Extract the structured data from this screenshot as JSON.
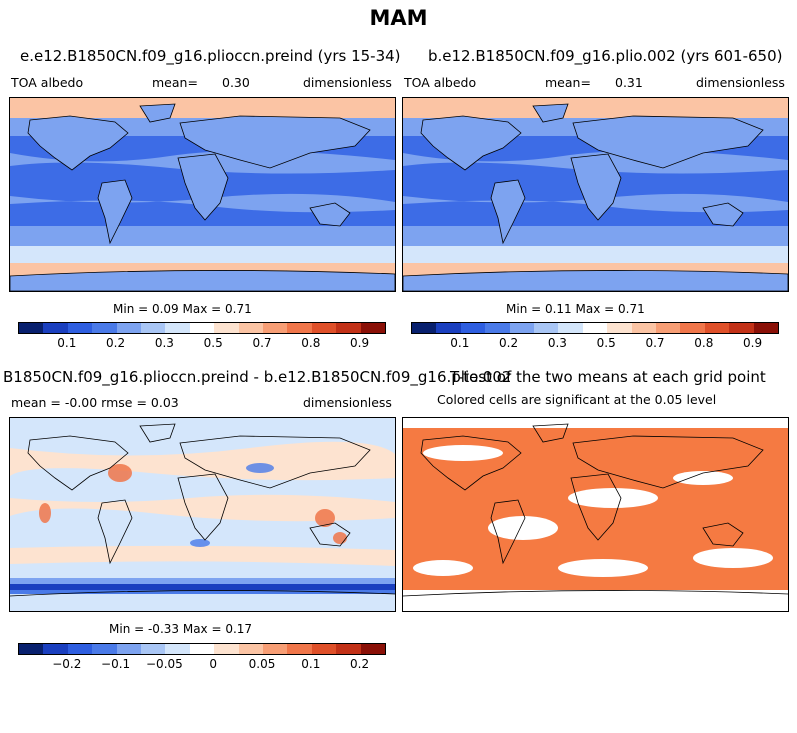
{
  "title": "MAM",
  "panels": [
    {
      "title": "e.e12.B1850CN.f09_g16.plioccn.preind (yrs 15-34)",
      "variable": "TOA albedo",
      "mean_label": "mean=",
      "mean_value": "0.30",
      "units": "dimensionless",
      "minmax": "Min =   0.09 Max =   0.71"
    },
    {
      "title": "b.e12.B1850CN.f09_g16.plio.002 (yrs 601-650)",
      "variable": "TOA albedo",
      "mean_label": "mean=",
      "mean_value": "0.31",
      "units": "dimensionless",
      "minmax": "Min =   0.11 Max =   0.71"
    },
    {
      "title": "B1850CN.f09_g16.plioccn.preind - b.e12.B1850CN.f09_g16.plio.002",
      "stats": "mean =  -0.00    rmse =   0.03",
      "units": "dimensionless",
      "minmax": "Min =  -0.33 Max =   0.17"
    },
    {
      "title": "T-test of the two means at each grid point",
      "subtitle": "Colored cells are significant at the 0.05 level"
    }
  ],
  "colorbars": {
    "albedo": {
      "labels": [
        "0.1",
        "0.2",
        "0.3",
        "0.5",
        "0.7",
        "0.8",
        "0.9"
      ],
      "colors": [
        "#08206e",
        "#1a3fbf",
        "#2e5ee0",
        "#4a7ae8",
        "#7da3f0",
        "#a9c6f5",
        "#d4e6fb",
        "#ffffff",
        "#fde3d0",
        "#fbc4a4",
        "#f79e75",
        "#f0764a",
        "#df5029",
        "#c23117",
        "#8a1007"
      ]
    },
    "diff": {
      "labels": [
        "-0.2",
        "-0.1",
        "-0.05",
        "0",
        "0.05",
        "0.1",
        "0.2"
      ],
      "colors": [
        "#08206e",
        "#1a3fbf",
        "#2e5ee0",
        "#4a7ae8",
        "#7da3f0",
        "#a9c6f5",
        "#d4e6fb",
        "#ffffff",
        "#fde3d0",
        "#fbc4a4",
        "#f79e75",
        "#f0764a",
        "#df5029",
        "#c23117",
        "#8a1007"
      ]
    }
  },
  "colors": {
    "significance": "#f57a42",
    "ocean_mid": "#2e5ee0",
    "low_albedo": "#4a7ae8",
    "high_albedo": "#fbc4a4"
  }
}
